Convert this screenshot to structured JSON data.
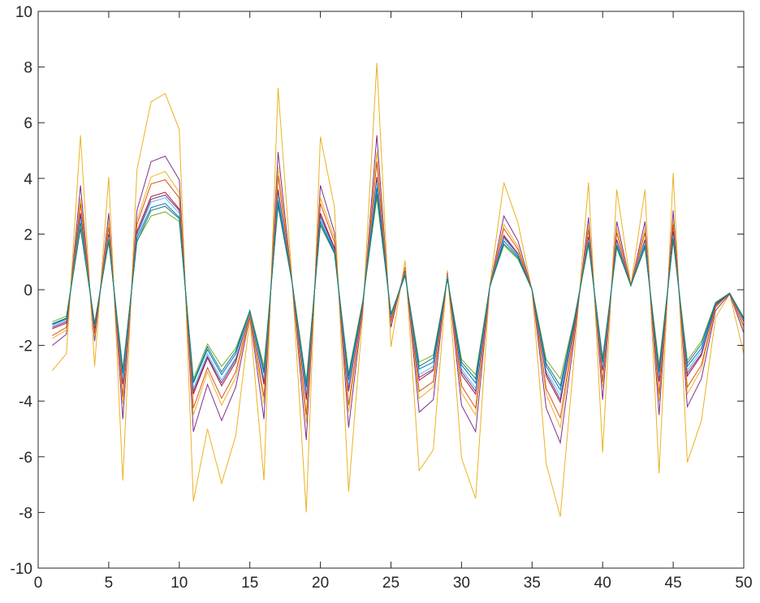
{
  "chart_data": {
    "type": "line",
    "title": "",
    "xlabel": "",
    "ylabel": "",
    "xlim": [
      0,
      50
    ],
    "ylim": [
      -10,
      10
    ],
    "grid": false,
    "legend": "none",
    "x_ticks": [
      "0",
      "5",
      "10",
      "15",
      "20",
      "25",
      "30",
      "35",
      "40",
      "45",
      "50"
    ],
    "y_ticks": [
      "-10",
      "-8",
      "-6",
      "-4",
      "-2",
      "0",
      "2",
      "4",
      "6",
      "8",
      "10"
    ],
    "x_tick_values": [
      0,
      5,
      10,
      15,
      20,
      25,
      30,
      35,
      40,
      45,
      50
    ],
    "y_tick_values": [
      -10,
      -8,
      -6,
      -4,
      -2,
      0,
      2,
      4,
      6,
      8,
      10
    ],
    "x": [
      1,
      2,
      3,
      4,
      5,
      6,
      7,
      8,
      9,
      10,
      11,
      12,
      13,
      14,
      15,
      16,
      17,
      18,
      19,
      20,
      21,
      22,
      23,
      24,
      25,
      26,
      27,
      28,
      29,
      30,
      31,
      32,
      33,
      34,
      35,
      36,
      37,
      38,
      39,
      40,
      41,
      42,
      43,
      44,
      45,
      46,
      47,
      48,
      49,
      50
    ],
    "series": [
      {
        "color": "#EDB120",
        "values": [
          -2.9,
          -2.3,
          5.55,
          -2.75,
          4.05,
          -6.85,
          4.3,
          6.75,
          7.05,
          5.75,
          -7.6,
          -5.0,
          -6.95,
          -5.25,
          -1.05,
          -6.85,
          7.25,
          0.3,
          -8.0,
          5.5,
          2.95,
          -7.25,
          -0.9,
          8.15,
          -2.05,
          1.05,
          -6.5,
          -5.75,
          0.7,
          -6.05,
          -7.5,
          0.15,
          3.85,
          2.4,
          -0.05,
          -6.25,
          -8.15,
          -2.3,
          3.85,
          -5.85,
          3.6,
          0.15,
          3.6,
          -6.6,
          4.2,
          -6.2,
          -4.7,
          -1.0,
          -0.15,
          -2.3
        ]
      },
      {
        "color": "#7E2F8E",
        "values": [
          -2.0,
          -1.6,
          3.75,
          -1.85,
          2.75,
          -4.65,
          2.85,
          4.6,
          4.8,
          3.95,
          -5.1,
          -3.4,
          -4.7,
          -3.5,
          -0.95,
          -4.65,
          4.95,
          0.25,
          -5.4,
          3.75,
          2.05,
          -4.95,
          -0.7,
          5.55,
          -1.35,
          0.8,
          -4.4,
          -3.95,
          0.6,
          -4.15,
          -5.1,
          0.1,
          2.65,
          1.75,
          0.0,
          -4.25,
          -5.5,
          -1.7,
          2.6,
          -3.95,
          2.45,
          0.15,
          2.45,
          -4.5,
          2.85,
          -4.2,
          -3.2,
          -0.75,
          -0.15,
          -1.55
        ]
      },
      {
        "color": "#EDB120",
        "values": [
          -1.75,
          -1.45,
          3.3,
          -1.65,
          2.45,
          -4.1,
          2.5,
          4.05,
          4.25,
          3.5,
          -4.5,
          -2.95,
          -4.15,
          -3.15,
          -0.9,
          -4.1,
          4.4,
          0.25,
          -4.8,
          3.3,
          1.85,
          -4.4,
          -0.6,
          4.95,
          -1.2,
          0.75,
          -3.9,
          -3.5,
          0.55,
          -3.7,
          -4.5,
          0.1,
          2.35,
          1.55,
          0.0,
          -3.75,
          -4.95,
          -1.5,
          2.3,
          -3.5,
          2.2,
          0.15,
          2.2,
          -4.0,
          2.5,
          -3.75,
          -2.85,
          -0.65,
          -0.12,
          -1.4
        ]
      },
      {
        "color": "#D95319",
        "values": [
          -1.65,
          -1.35,
          3.1,
          -1.55,
          2.25,
          -3.85,
          2.35,
          3.8,
          3.95,
          3.3,
          -4.25,
          -2.8,
          -3.9,
          -2.95,
          -0.85,
          -3.85,
          4.1,
          0.25,
          -4.5,
          3.1,
          1.7,
          -4.15,
          -0.55,
          4.6,
          -1.15,
          0.7,
          -3.65,
          -3.3,
          0.5,
          -3.45,
          -4.25,
          0.1,
          2.2,
          1.45,
          0.0,
          -3.55,
          -4.6,
          -1.4,
          2.15,
          -3.3,
          2.05,
          0.15,
          2.05,
          -3.75,
          2.35,
          -3.5,
          -2.7,
          -0.6,
          -0.12,
          -1.3
        ]
      },
      {
        "color": "#A2142F",
        "values": [
          -1.4,
          -1.2,
          2.75,
          -1.4,
          2.0,
          -3.4,
          2.1,
          3.35,
          3.5,
          2.9,
          -3.75,
          -2.45,
          -3.45,
          -2.6,
          -0.8,
          -3.4,
          3.6,
          0.25,
          -3.95,
          2.75,
          1.5,
          -3.65,
          -0.5,
          4.05,
          -1.0,
          0.65,
          -3.25,
          -2.9,
          0.45,
          -3.05,
          -3.75,
          0.1,
          1.95,
          1.3,
          0.0,
          -3.1,
          -4.05,
          -1.25,
          1.9,
          -2.9,
          1.8,
          0.15,
          1.8,
          -3.3,
          2.1,
          -3.1,
          -2.35,
          -0.55,
          -0.12,
          -1.15
        ]
      },
      {
        "color": "#7E2F8E",
        "values": [
          -1.35,
          -1.15,
          2.65,
          -1.35,
          1.95,
          -3.3,
          2.0,
          3.25,
          3.4,
          2.85,
          -3.65,
          -2.4,
          -3.35,
          -2.5,
          -0.8,
          -3.3,
          3.5,
          0.25,
          -3.85,
          2.65,
          1.45,
          -3.55,
          -0.5,
          3.95,
          -0.95,
          0.6,
          -3.15,
          -2.85,
          0.45,
          -2.95,
          -3.65,
          0.1,
          1.9,
          1.25,
          0.0,
          -3.0,
          -3.95,
          -1.2,
          1.85,
          -2.85,
          1.75,
          0.15,
          1.75,
          -3.2,
          2.0,
          -3.0,
          -2.3,
          -0.55,
          -0.12,
          -1.1
        ]
      },
      {
        "color": "#4DBEEE",
        "values": [
          -1.3,
          -1.1,
          2.55,
          -1.3,
          1.9,
          -3.2,
          1.95,
          3.15,
          3.3,
          2.75,
          -3.55,
          -2.3,
          -3.25,
          -2.45,
          -0.8,
          -3.2,
          3.4,
          0.25,
          -3.7,
          2.55,
          1.4,
          -3.45,
          -0.45,
          3.85,
          -0.95,
          0.6,
          -3.05,
          -2.75,
          0.45,
          -2.85,
          -3.55,
          0.1,
          1.85,
          1.25,
          0.0,
          -2.9,
          -3.8,
          -1.15,
          1.8,
          -2.75,
          1.7,
          0.15,
          1.7,
          -3.1,
          1.95,
          -2.9,
          -2.2,
          -0.5,
          -0.12,
          -1.1
        ]
      },
      {
        "color": "#0072BD",
        "values": [
          -1.25,
          -1.05,
          2.4,
          -1.25,
          1.8,
          -3.0,
          1.85,
          2.95,
          3.1,
          2.6,
          -3.35,
          -2.15,
          -3.05,
          -2.3,
          -0.75,
          -3.0,
          3.2,
          0.25,
          -3.5,
          2.45,
          1.35,
          -3.25,
          -0.45,
          3.65,
          -0.9,
          0.55,
          -2.85,
          -2.6,
          0.4,
          -2.7,
          -3.35,
          0.1,
          1.75,
          1.2,
          0.0,
          -2.75,
          -3.6,
          -1.1,
          1.7,
          -2.6,
          1.6,
          0.15,
          1.6,
          -2.95,
          1.85,
          -2.75,
          -2.1,
          -0.5,
          -0.12,
          -1.05
        ]
      },
      {
        "color": "#77AC30",
        "values": [
          -1.15,
          -0.95,
          2.3,
          -1.2,
          1.75,
          -2.85,
          1.75,
          2.65,
          2.8,
          2.45,
          -3.2,
          -1.95,
          -2.75,
          -2.1,
          -0.75,
          -2.75,
          3.0,
          0.25,
          -3.3,
          2.3,
          1.3,
          -3.0,
          -0.4,
          3.3,
          -0.85,
          0.5,
          -2.6,
          -2.35,
          0.4,
          -2.5,
          -3.05,
          0.1,
          1.6,
          1.1,
          0.0,
          -2.5,
          -3.2,
          -1.0,
          1.6,
          -2.45,
          1.5,
          0.15,
          1.5,
          -2.7,
          1.75,
          -2.55,
          -1.85,
          -0.45,
          -0.12,
          -1.0
        ]
      },
      {
        "color": "#137D7B",
        "values": [
          -1.22,
          -1.02,
          2.2,
          -1.22,
          1.72,
          -2.9,
          1.72,
          2.85,
          3.0,
          2.55,
          -3.3,
          -2.05,
          -2.95,
          -2.2,
          -0.75,
          -2.9,
          3.05,
          0.25,
          -3.4,
          2.35,
          1.3,
          -3.1,
          -0.45,
          3.45,
          -0.88,
          0.52,
          -2.75,
          -2.45,
          0.4,
          -2.6,
          -3.2,
          0.1,
          1.65,
          1.15,
          0.0,
          -2.65,
          -3.45,
          -1.05,
          1.65,
          -2.5,
          1.55,
          0.15,
          1.55,
          -2.85,
          1.8,
          -2.65,
          -1.95,
          -0.48,
          -0.12,
          -1.02
        ]
      }
    ]
  }
}
